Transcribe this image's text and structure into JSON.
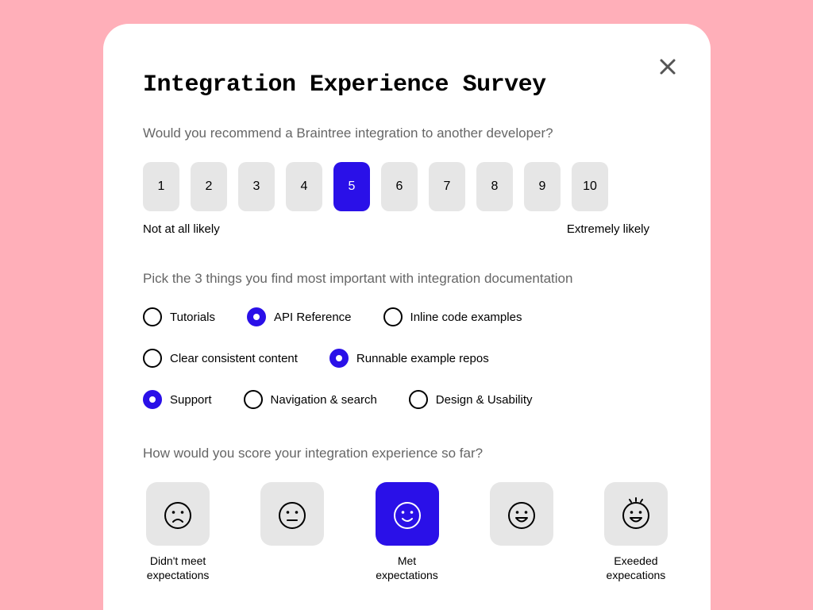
{
  "colors": {
    "page_bg": "#ffafb9",
    "card_bg": "#ffffff",
    "neutral_btn": "#e6e6e6",
    "accent": "#2a10e8",
    "muted_text": "#666666",
    "text": "#000000"
  },
  "title": "Integration Experience Survey",
  "close_icon": "close-icon",
  "q1": {
    "prompt": "Would you recommend a Braintree integration to another developer?",
    "scale": [
      "1",
      "2",
      "3",
      "4",
      "5",
      "6",
      "7",
      "8",
      "9",
      "10"
    ],
    "selected": "5",
    "min_label": "Not at all likely",
    "max_label": "Extremely likely"
  },
  "q2": {
    "prompt": "Pick the 3 things you find most important with integration documentation",
    "rows": [
      [
        {
          "label": "Tutorials",
          "checked": false
        },
        {
          "label": "API Reference",
          "checked": true
        },
        {
          "label": "Inline code examples",
          "checked": false
        }
      ],
      [
        {
          "label": "Clear consistent content",
          "checked": false
        },
        {
          "label": "Runnable example repos",
          "checked": true
        }
      ],
      [
        {
          "label": "Support",
          "checked": true
        },
        {
          "label": "Navigation & search",
          "checked": false
        },
        {
          "label": "Design & Usability",
          "checked": false
        }
      ]
    ]
  },
  "q3": {
    "prompt": "How would you score your integration experience so far?",
    "faces": [
      {
        "type": "sad",
        "caption": "Didn't meet expectations",
        "selected": false
      },
      {
        "type": "neutral",
        "caption": "",
        "selected": false
      },
      {
        "type": "happy",
        "caption": "Met expectations",
        "selected": true
      },
      {
        "type": "grin",
        "caption": "",
        "selected": false
      },
      {
        "type": "excited",
        "caption": "Exeeded expecations",
        "selected": false
      }
    ]
  }
}
